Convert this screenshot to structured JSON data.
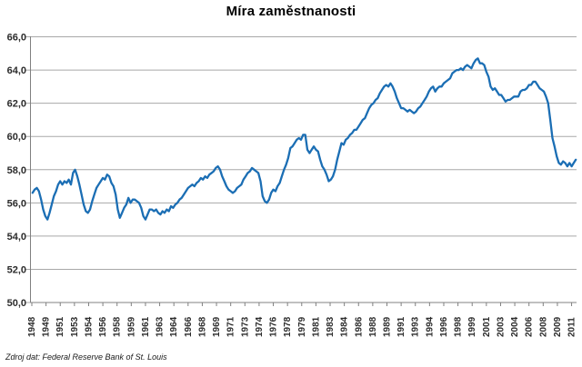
{
  "source_note": "Zdroj dat: Federal Reserve Bank of St. Louis",
  "colors": {
    "line": "#1B6EB4",
    "gridline": "#A8A8A8",
    "axis": "#808080",
    "label": "#2B2B2B",
    "title": "#000000",
    "background": "#FFFFFF"
  },
  "chart_data": {
    "type": "line",
    "title": "Míra zaměstnanosti",
    "series_name": "Míra zaměstnanosti (%)",
    "legend": "none",
    "grid": "horizontal",
    "ylim": [
      50.0,
      66.0
    ],
    "y_tick_step": 2.0,
    "decimal_separator": ",",
    "y_tick_labels": [
      "66,0",
      "64,0",
      "62,0",
      "60,0",
      "58,0",
      "56,0",
      "54,0",
      "52,0",
      "50,0"
    ],
    "x_tick_labels": [
      "1948",
      "1949",
      "1951",
      "1953",
      "1954",
      "1956",
      "1958",
      "1959",
      "1961",
      "1963",
      "1964",
      "1966",
      "1968",
      "1969",
      "1971",
      "1973",
      "1974",
      "1976",
      "1978",
      "1979",
      "1981",
      "1983",
      "1984",
      "1986",
      "1988",
      "1989",
      "1991",
      "1993",
      "1994",
      "1996",
      "1998",
      "1999",
      "2001",
      "2003",
      "2004",
      "2006",
      "2008",
      "2009",
      "2011"
    ],
    "x_tick_interval_months": 20,
    "frequency": "quarterly",
    "period_start": "1948-Q1",
    "period_end": "2011-Q4",
    "values": [
      56.6,
      56.8,
      56.9,
      56.7,
      56.2,
      55.6,
      55.2,
      55.0,
      55.4,
      55.9,
      56.4,
      56.7,
      57.1,
      57.3,
      57.1,
      57.3,
      57.2,
      57.4,
      57.1,
      57.8,
      58.0,
      57.6,
      57.1,
      56.5,
      55.9,
      55.5,
      55.4,
      55.6,
      56.1,
      56.5,
      56.9,
      57.1,
      57.3,
      57.5,
      57.4,
      57.7,
      57.6,
      57.2,
      57.0,
      56.5,
      55.6,
      55.1,
      55.4,
      55.7,
      55.9,
      56.3,
      56.0,
      56.2,
      56.2,
      56.1,
      56.0,
      55.7,
      55.2,
      55.0,
      55.3,
      55.6,
      55.6,
      55.5,
      55.6,
      55.4,
      55.3,
      55.5,
      55.4,
      55.6,
      55.5,
      55.8,
      55.7,
      55.9,
      56.0,
      56.2,
      56.3,
      56.5,
      56.7,
      56.9,
      57.0,
      57.1,
      57.0,
      57.2,
      57.3,
      57.5,
      57.4,
      57.6,
      57.5,
      57.7,
      57.8,
      57.9,
      58.1,
      58.2,
      58.0,
      57.6,
      57.3,
      57.0,
      56.8,
      56.7,
      56.6,
      56.7,
      56.9,
      57.0,
      57.1,
      57.4,
      57.6,
      57.8,
      57.9,
      58.1,
      58.0,
      57.9,
      57.8,
      57.3,
      56.4,
      56.1,
      56.0,
      56.2,
      56.6,
      56.8,
      56.7,
      57.0,
      57.2,
      57.6,
      58.0,
      58.3,
      58.7,
      59.3,
      59.4,
      59.6,
      59.8,
      59.9,
      59.8,
      60.1,
      60.1,
      59.2,
      59.0,
      59.2,
      59.4,
      59.2,
      59.1,
      58.6,
      58.2,
      58.0,
      57.7,
      57.3,
      57.4,
      57.6,
      58.0,
      58.6,
      59.1,
      59.6,
      59.5,
      59.8,
      59.9,
      60.1,
      60.2,
      60.4,
      60.4,
      60.6,
      60.8,
      61.0,
      61.1,
      61.4,
      61.7,
      61.9,
      62.0,
      62.2,
      62.3,
      62.6,
      62.8,
      63.0,
      63.1,
      63.0,
      63.2,
      63.0,
      62.7,
      62.3,
      62.0,
      61.7,
      61.7,
      61.6,
      61.5,
      61.6,
      61.5,
      61.4,
      61.5,
      61.7,
      61.8,
      62.0,
      62.2,
      62.4,
      62.7,
      62.9,
      63.0,
      62.7,
      62.9,
      63.0,
      63.0,
      63.2,
      63.3,
      63.4,
      63.5,
      63.8,
      63.9,
      64.0,
      64.0,
      64.1,
      64.0,
      64.2,
      64.3,
      64.2,
      64.1,
      64.4,
      64.6,
      64.7,
      64.4,
      64.4,
      64.3,
      63.9,
      63.6,
      63.0,
      62.8,
      62.9,
      62.7,
      62.5,
      62.5,
      62.3,
      62.1,
      62.2,
      62.2,
      62.3,
      62.4,
      62.4,
      62.4,
      62.7,
      62.8,
      62.8,
      62.9,
      63.1,
      63.1,
      63.3,
      63.3,
      63.1,
      62.9,
      62.8,
      62.7,
      62.4,
      62.0,
      61.0,
      59.9,
      59.4,
      58.8,
      58.4,
      58.3,
      58.5,
      58.4,
      58.2,
      58.4,
      58.2,
      58.4,
      58.6
    ]
  }
}
